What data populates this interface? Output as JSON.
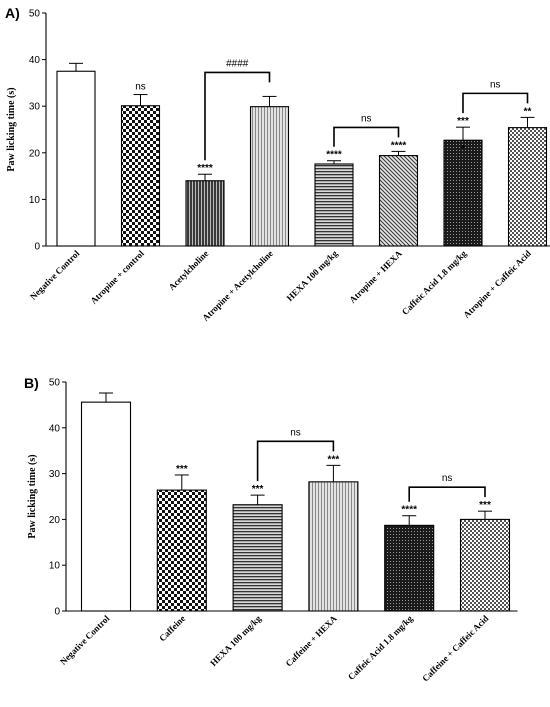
{
  "chart_data": [
    {
      "panel_label": "A)",
      "type": "bar",
      "ylabel": "Paw licking time (s)",
      "ylim": [
        0,
        50
      ],
      "yticks": [
        0,
        10,
        20,
        30,
        40,
        50
      ],
      "categories": [
        "Negative Control",
        "Atropine + control",
        "Acetylcholine",
        "Atropine + Acetylcholine",
        "HEXA 100 mg/kg",
        "Atropine + HEXA",
        "Caffeic Acid 1.8 mg/kg",
        "Atropine + Caffeic Acid"
      ],
      "values": [
        37.5,
        30.1,
        14.0,
        29.9,
        17.6,
        19.4,
        22.7,
        25.4
      ],
      "errors": [
        1.7,
        2.4,
        1.4,
        2.2,
        0.7,
        0.9,
        2.8,
        2.2
      ],
      "annotations": [
        "",
        "ns",
        "****",
        "",
        "****",
        "****",
        "***",
        "**"
      ],
      "extra_marks": [
        "",
        "",
        "",
        "",
        "",
        "",
        "*",
        ""
      ],
      "patterns": [
        "white",
        "checker",
        "vlines-dark",
        "vlines-light",
        "hlines",
        "diagonal",
        "dense-dots",
        "fine-check"
      ],
      "comparisons": [
        {
          "from": 2,
          "to": 3,
          "label": "####"
        },
        {
          "from": 4,
          "to": 5,
          "label": "ns"
        },
        {
          "from": 6,
          "to": 7,
          "label": "ns"
        }
      ]
    },
    {
      "panel_label": "B)",
      "type": "bar",
      "ylabel": "Paw licking time (s)",
      "ylim": [
        0,
        50
      ],
      "yticks": [
        0,
        10,
        20,
        30,
        40,
        50
      ],
      "categories": [
        "Negative Control",
        "Caffeine",
        "HEXA 100 mg/kg",
        "Caffeine + HEXA",
        "Caffeic Acid 1.8 mg/kg",
        "Caffeine + Caffeic Acid"
      ],
      "values": [
        45.6,
        26.4,
        23.2,
        28.2,
        18.7,
        20.0
      ],
      "errors": [
        2.0,
        3.3,
        2.1,
        3.6,
        2.1,
        1.8
      ],
      "annotations": [
        "",
        "***",
        "***",
        "***",
        "****",
        "***"
      ],
      "extra_marks": [
        "",
        "",
        "",
        "",
        "",
        ""
      ],
      "patterns": [
        "white",
        "checker",
        "hlines",
        "vlines-light",
        "dense-dots",
        "fine-check"
      ],
      "comparisons": [
        {
          "from": 2,
          "to": 3,
          "label": "ns"
        },
        {
          "from": 4,
          "to": 5,
          "label": "ns"
        }
      ]
    }
  ]
}
